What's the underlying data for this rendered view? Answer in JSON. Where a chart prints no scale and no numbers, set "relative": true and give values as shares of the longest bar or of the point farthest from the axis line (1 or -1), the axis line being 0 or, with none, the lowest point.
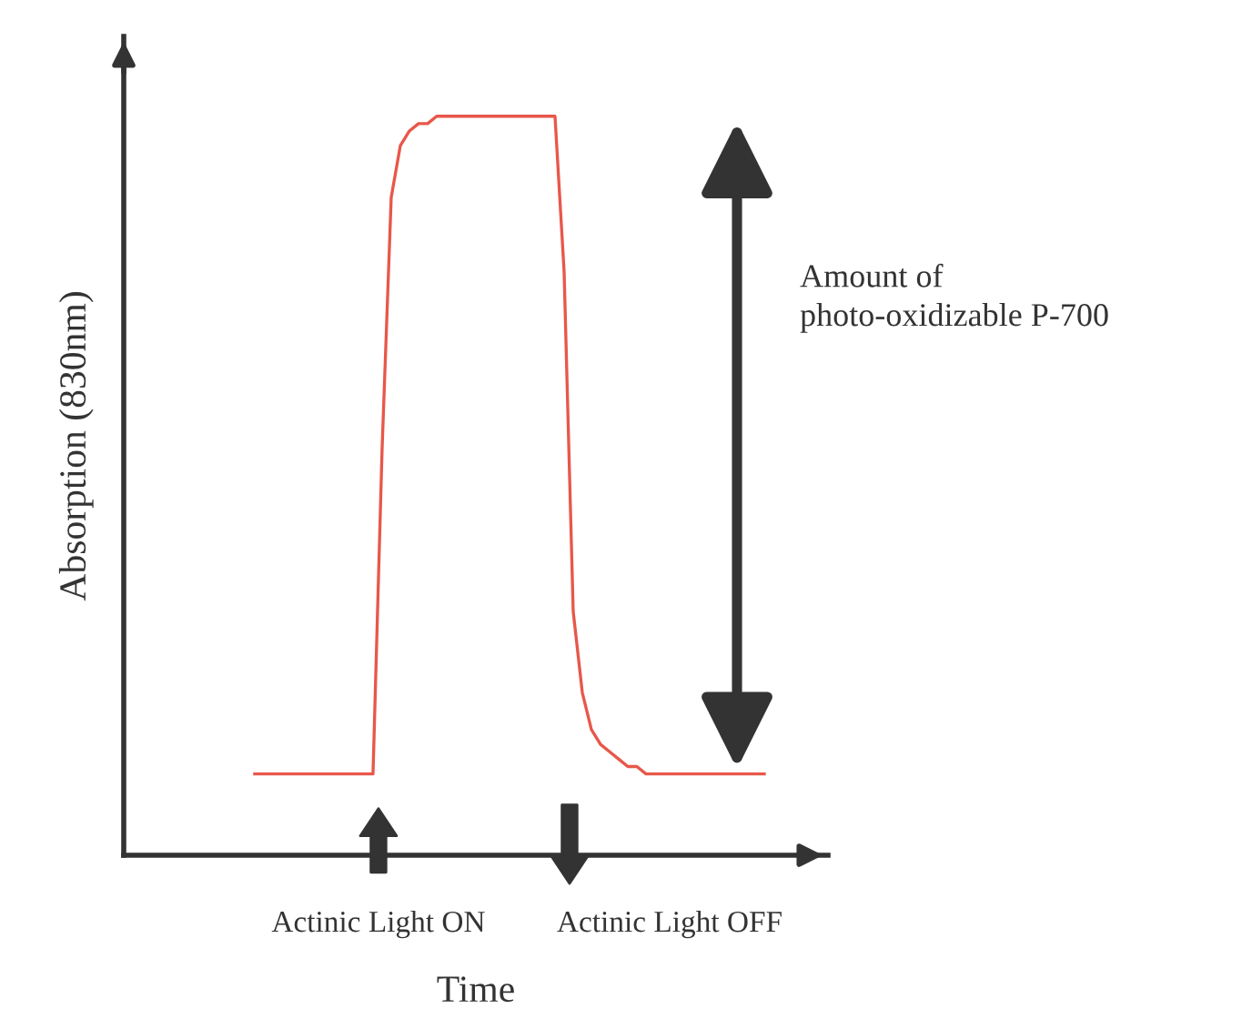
{
  "chart_data": {
    "type": "line",
    "relative": true,
    "xlabel": "Time",
    "ylabel": "Absorption (830nm)",
    "categories": [
      null,
      null,
      null,
      null,
      null,
      null,
      null,
      null,
      null,
      null,
      null,
      null,
      null,
      null,
      null,
      null,
      null,
      null,
      null,
      null,
      null,
      null,
      null,
      null,
      null,
      null,
      null,
      null,
      null,
      null,
      null,
      null,
      null,
      null,
      null,
      null,
      null,
      null,
      null,
      null,
      null,
      null,
      null,
      null,
      null,
      null,
      null,
      null,
      null,
      null,
      null,
      null,
      null,
      null,
      null,
      null,
      null
    ],
    "series": [
      {
        "color": "#e8574a",
        "values": [
          0.11,
          0.11,
          0.11,
          0.11,
          0.11,
          0.11,
          0.11,
          0.11,
          0.11,
          0.11,
          0.11,
          0.11,
          0.11,
          0.11,
          0.55,
          0.89,
          0.96,
          0.98,
          0.99,
          0.99,
          1.0,
          1.0,
          1.0,
          1.0,
          1.0,
          1.0,
          1.0,
          1.0,
          1.0,
          1.0,
          1.0,
          1.0,
          1.0,
          1.0,
          0.79,
          0.33,
          0.22,
          0.17,
          0.15,
          0.14,
          0.13,
          0.12,
          0.12,
          0.11,
          0.11,
          0.11,
          0.11,
          0.11,
          0.11,
          0.11,
          0.11,
          0.11,
          0.11,
          0.11,
          0.11,
          0.11,
          0.11
        ]
      }
    ],
    "annotations": [
      "Actinic Light ON",
      "Actinic Light OFF",
      "Amount of\nphoto-oxidizable P-700"
    ]
  }
}
